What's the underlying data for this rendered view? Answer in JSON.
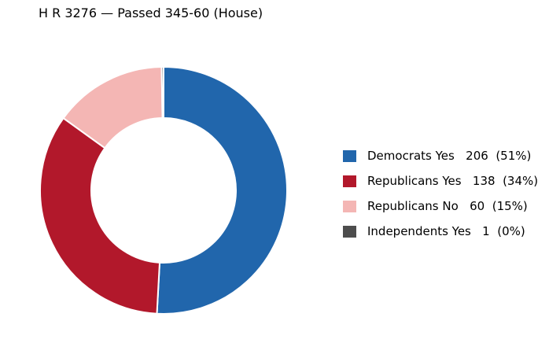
{
  "chart_data": {
    "type": "pie",
    "donut": true,
    "title": "H R 3276 — Passed 345-60 (House)",
    "slices": [
      {
        "label": "Democrats Yes",
        "value": 206,
        "percent": "51%",
        "color": "#2166ac",
        "legend_text": "Democrats Yes   206  (51%)"
      },
      {
        "label": "Republicans Yes",
        "value": 138,
        "percent": "34%",
        "color": "#b2182b",
        "legend_text": "Republicans Yes   138  (34%)"
      },
      {
        "label": "Republicans No",
        "value": 60,
        "percent": "15%",
        "color": "#f4b6b4",
        "legend_text": "Republicans No   60  (15%)"
      },
      {
        "label": "Independents Yes",
        "value": 1,
        "percent": "0%",
        "color": "#4d4d4d",
        "legend_text": "Independents Yes   1  (0%)"
      }
    ],
    "start_angle": "top",
    "direction": "clockwise",
    "legend_position": "right"
  }
}
